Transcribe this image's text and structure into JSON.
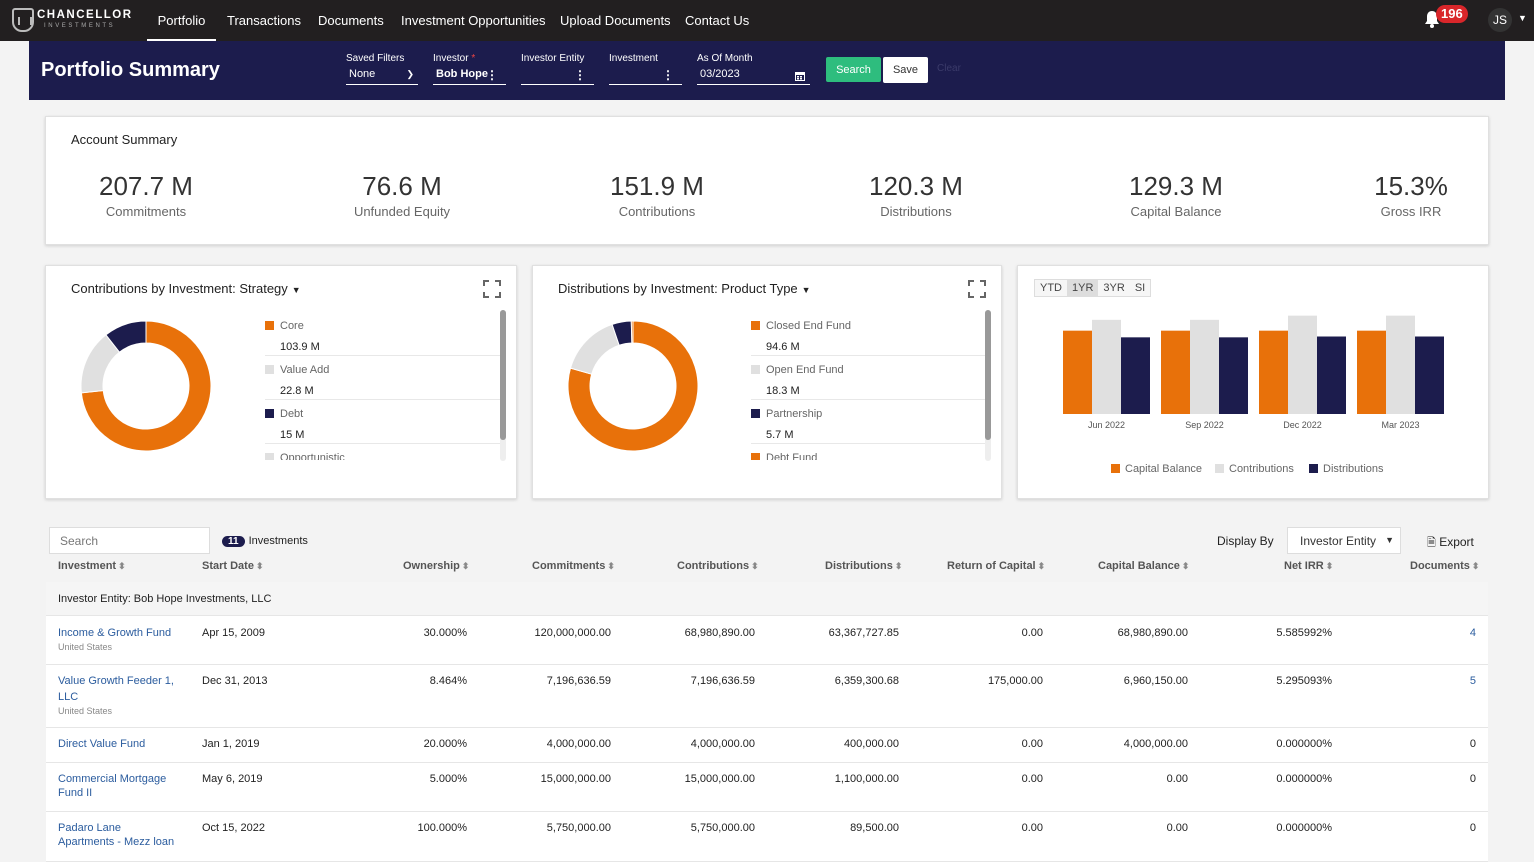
{
  "brand": {
    "name": "CHANCELLOR",
    "tagline": "INVESTMENTS"
  },
  "nav": {
    "items": [
      "Portfolio",
      "Transactions",
      "Documents",
      "Investment Opportunities",
      "Upload Documents",
      "Contact Us"
    ],
    "active": "Portfolio"
  },
  "notifications": {
    "count": "196",
    "icon": "bell-icon"
  },
  "user": {
    "initials": "JS"
  },
  "header": {
    "title": "Portfolio Summary",
    "saved_filters": {
      "label": "Saved Filters",
      "value": "None"
    },
    "investor": {
      "label": "Investor",
      "required": "*",
      "value": "Bob Hope"
    },
    "investor_entity": {
      "label": "Investor Entity",
      "value": ""
    },
    "investment": {
      "label": "Investment",
      "value": ""
    },
    "as_of_month": {
      "label": "As Of Month",
      "value": "03/2023"
    },
    "search_label": "Search",
    "save_label": "Save",
    "clear_label": "Clear"
  },
  "account_summary": {
    "title": "Account Summary",
    "kpis": [
      {
        "value": "207.7 M",
        "label": "Commitments"
      },
      {
        "value": "76.6 M",
        "label": "Unfunded Equity"
      },
      {
        "value": "151.9 M",
        "label": "Contributions"
      },
      {
        "value": "120.3 M",
        "label": "Distributions"
      },
      {
        "value": "129.3 M",
        "label": "Capital Balance"
      },
      {
        "value": "15.3%",
        "label": "Gross IRR"
      }
    ]
  },
  "colors": {
    "orange": "#e8710a",
    "gray": "#e0e0e0",
    "navy": "#1c1c4d",
    "green": "#2ebd7e",
    "link": "#2b5c9e"
  },
  "contrib_chart": {
    "title": "Contributions by Investment: Strategy",
    "legend": [
      {
        "name": "Core",
        "value": "103.9 M",
        "color": "#e8710a"
      },
      {
        "name": "Value Add",
        "value": "22.8 M",
        "color": "#e0e0e0"
      },
      {
        "name": "Debt",
        "value": "15 M",
        "color": "#1c1c4d"
      },
      {
        "name": "Opportunistic",
        "value": "",
        "color": "#e0e0e0"
      }
    ]
  },
  "dist_chart": {
    "title": "Distributions by Investment: Product Type",
    "legend": [
      {
        "name": "Closed End Fund",
        "value": "94.6 M",
        "color": "#e8710a"
      },
      {
        "name": "Open End Fund",
        "value": "18.3 M",
        "color": "#e0e0e0"
      },
      {
        "name": "Partnership",
        "value": "5.7 M",
        "color": "#1c1c4d"
      },
      {
        "name": "Debt Fund",
        "value": "",
        "color": "#e8710a"
      }
    ]
  },
  "period_tabs": {
    "items": [
      "YTD",
      "1YR",
      "3YR",
      "SI"
    ],
    "active": "1YR"
  },
  "chart_data": [
    {
      "type": "pie",
      "title": "Contributions by Investment: Strategy",
      "labels": [
        "Core",
        "Value Add",
        "Debt"
      ],
      "values": [
        103.9,
        22.8,
        15
      ],
      "colors": [
        "#e8710a",
        "#e0e0e0",
        "#1c1c4d"
      ]
    },
    {
      "type": "pie",
      "title": "Distributions by Investment: Product Type",
      "labels": [
        "Closed End Fund",
        "Open End Fund",
        "Partnership",
        "Debt Fund"
      ],
      "values": [
        94.6,
        18.3,
        5.7,
        0.5
      ],
      "colors": [
        "#e8710a",
        "#e0e0e0",
        "#1c1c4d",
        "#e8710a"
      ]
    },
    {
      "type": "bar",
      "categories": [
        "Jun 2022",
        "Sep 2022",
        "Dec 2022",
        "Mar 2023"
      ],
      "series": [
        {
          "name": "Capital Balance",
          "values": [
            100,
            100,
            100,
            100
          ],
          "color": "#e8710a"
        },
        {
          "name": "Contributions",
          "values": [
            113,
            113,
            118,
            118
          ],
          "color": "#e0e0e0"
        },
        {
          "name": "Distributions",
          "values": [
            92,
            92,
            93,
            93
          ],
          "color": "#1c1c4d"
        }
      ],
      "ylim": [
        0,
        120
      ],
      "legend": "bottom",
      "grid": false
    }
  ],
  "table": {
    "search_placeholder": "Search",
    "count": "11",
    "count_label": "Investments",
    "display_by_label": "Display By",
    "display_by_value": "Investor Entity",
    "export_label": "Export",
    "columns": [
      "Investment",
      "Start Date",
      "Ownership",
      "Commitments",
      "Contributions",
      "Distributions",
      "Return of Capital",
      "Capital Balance",
      "Net IRR",
      "Documents"
    ],
    "group": "Investor Entity: Bob Hope Investments, LLC",
    "rows": [
      {
        "name": "Income & Growth Fund",
        "country": "United States",
        "start": "Apr 15, 2009",
        "own": "30.000%",
        "commit": "120,000,000.00",
        "contrib": "68,980,890.00",
        "dist": "63,367,727.85",
        "roc": "0.00",
        "cap": "68,980,890.00",
        "irr": "5.585992%",
        "docs": "4"
      },
      {
        "name": "Value Growth Feeder 1,",
        "name2": "LLC",
        "country": "United States",
        "start": "Dec 31, 2013",
        "own": "8.464%",
        "commit": "7,196,636.59",
        "contrib": "7,196,636.59",
        "dist": "6,359,300.68",
        "roc": "175,000.00",
        "cap": "6,960,150.00",
        "irr": "5.295093%",
        "docs": "5"
      },
      {
        "name": "Direct Value Fund",
        "start": "Jan 1, 2019",
        "own": "20.000%",
        "commit": "4,000,000.00",
        "contrib": "4,000,000.00",
        "dist": "400,000.00",
        "roc": "0.00",
        "cap": "4,000,000.00",
        "irr": "0.000000%",
        "docs": "0"
      },
      {
        "name": "Commercial Mortgage",
        "name2": "Fund II",
        "start": "May 6, 2019",
        "own": "5.000%",
        "commit": "15,000,000.00",
        "contrib": "15,000,000.00",
        "dist": "1,100,000.00",
        "roc": "0.00",
        "cap": "0.00",
        "irr": "0.000000%",
        "docs": "0"
      },
      {
        "name": "Padaro Lane",
        "name2": "Apartments - Mezz loan",
        "start": "Oct 15, 2022",
        "own": "100.000%",
        "commit": "5,750,000.00",
        "contrib": "5,750,000.00",
        "dist": "89,500.00",
        "roc": "0.00",
        "cap": "0.00",
        "irr": "0.000000%",
        "docs": "0"
      }
    ]
  }
}
